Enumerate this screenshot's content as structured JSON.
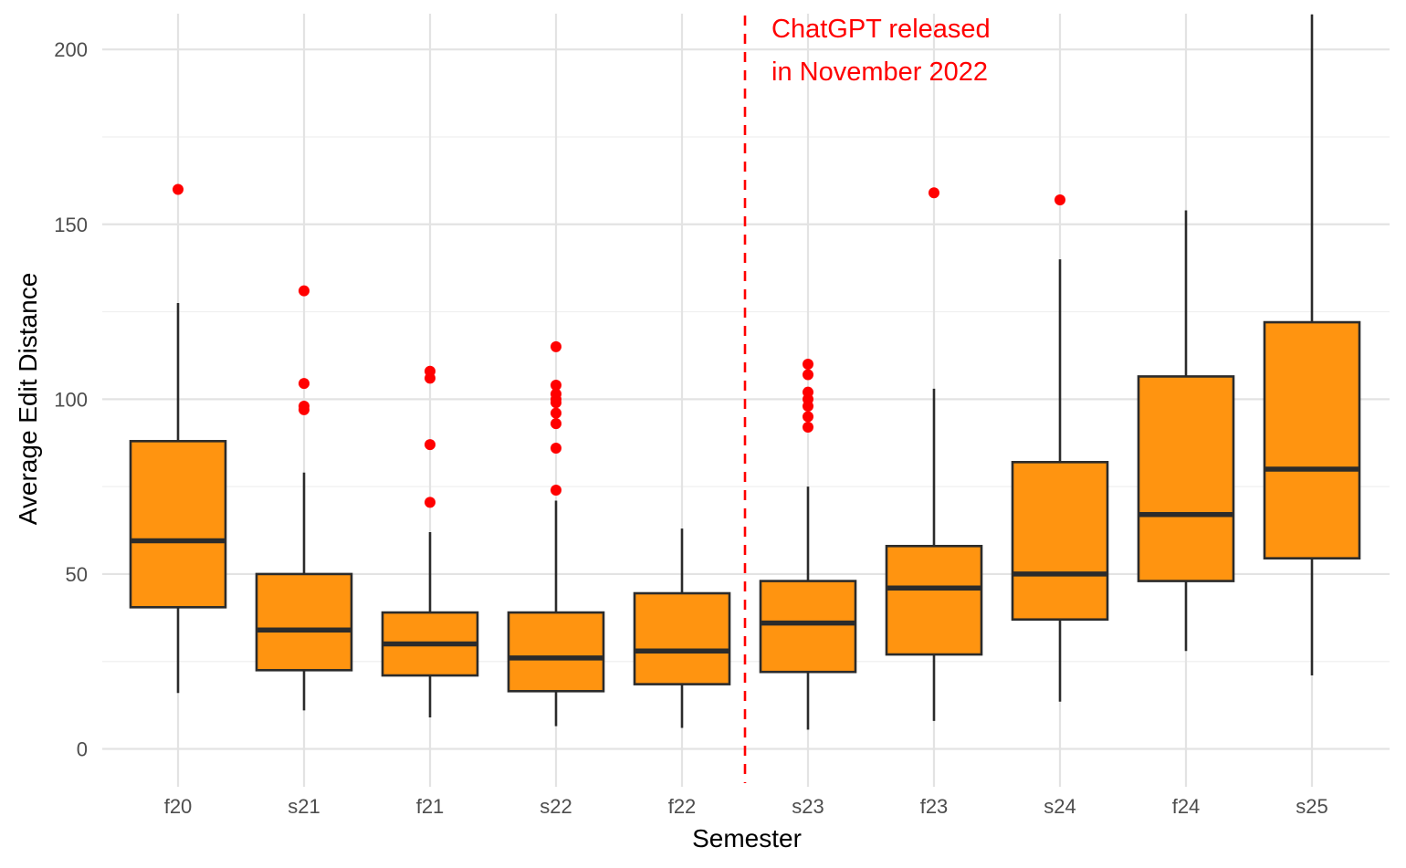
{
  "chart_data": {
    "type": "boxplot",
    "title": "",
    "xlabel": "Semester",
    "ylabel": "Average Edit Distance",
    "ylim": [
      -10,
      210
    ],
    "yticks": [
      0,
      50,
      100,
      150,
      200
    ],
    "categories": [
      "f20",
      "s21",
      "f21",
      "s22",
      "f22",
      "s23",
      "f23",
      "s24",
      "f24",
      "s25"
    ],
    "boxes": [
      {
        "label": "f20",
        "whisker_low": 16,
        "q1": 40.5,
        "median": 59.5,
        "q3": 88,
        "whisker_high": 127.5,
        "outliers": [
          160
        ]
      },
      {
        "label": "s21",
        "whisker_low": 11,
        "q1": 22.5,
        "median": 34,
        "q3": 50,
        "whisker_high": 79,
        "outliers": [
          97,
          98,
          104.5,
          131
        ]
      },
      {
        "label": "f21",
        "whisker_low": 9,
        "q1": 21,
        "median": 30,
        "q3": 39,
        "whisker_high": 62,
        "outliers": [
          70.5,
          87,
          106,
          108
        ]
      },
      {
        "label": "s22",
        "whisker_low": 6.5,
        "q1": 16.5,
        "median": 26,
        "q3": 39,
        "whisker_high": 71,
        "outliers": [
          74,
          86,
          93,
          96,
          99,
          100,
          101.5,
          104,
          115
        ]
      },
      {
        "label": "f22",
        "whisker_low": 6,
        "q1": 18.5,
        "median": 28,
        "q3": 44.5,
        "whisker_high": 63,
        "outliers": []
      },
      {
        "label": "s23",
        "whisker_low": 5.5,
        "q1": 22,
        "median": 36,
        "q3": 48,
        "whisker_high": 75,
        "outliers": [
          92,
          95,
          98,
          100,
          102,
          107,
          110
        ]
      },
      {
        "label": "f23",
        "whisker_low": 8,
        "q1": 27,
        "median": 46,
        "q3": 58,
        "whisker_high": 103,
        "outliers": [
          159
        ]
      },
      {
        "label": "s24",
        "whisker_low": 13.5,
        "q1": 37,
        "median": 50,
        "q3": 82,
        "whisker_high": 140,
        "outliers": [
          157
        ]
      },
      {
        "label": "f24",
        "whisker_low": 28,
        "q1": 48,
        "median": 67,
        "q3": 106.5,
        "whisker_high": 154,
        "outliers": []
      },
      {
        "label": "s25",
        "whisker_low": 21,
        "q1": 54.5,
        "median": 80,
        "q3": 122,
        "whisker_high": 210,
        "outliers": []
      }
    ],
    "box_fill": "#ff9410",
    "box_stroke": "#2b2b2b",
    "outlier_color": "#ff0000",
    "grid": true,
    "legend": "none",
    "annotations": [
      {
        "type": "vline",
        "between": [
          "f22",
          "s23"
        ],
        "style": "dashed",
        "color": "#ff0000"
      },
      {
        "type": "text",
        "lines": [
          "ChatGPT released",
          "in November 2022"
        ],
        "color": "#ff0000"
      }
    ]
  }
}
